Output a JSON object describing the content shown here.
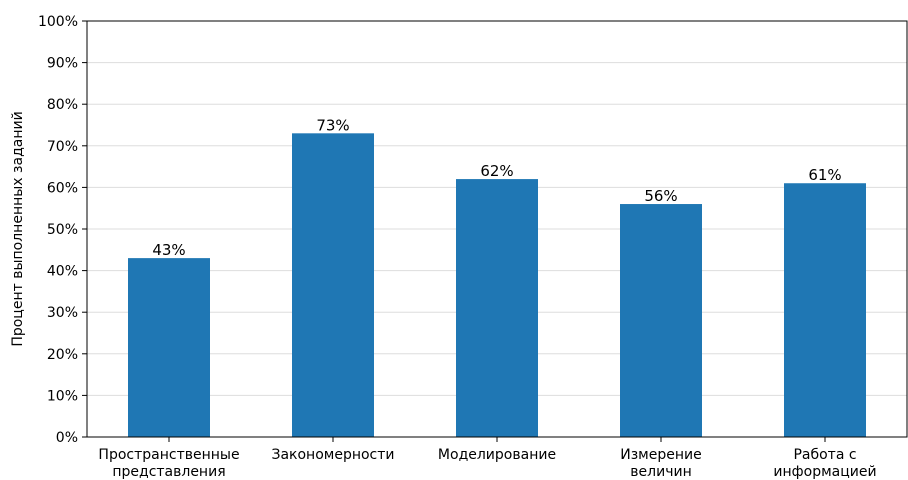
{
  "chart_data": {
    "type": "bar",
    "categories": [
      [
        "Пространственные",
        "представления"
      ],
      [
        "Закономерности"
      ],
      [
        "Моделирование"
      ],
      [
        "Измерение",
        "величин"
      ],
      [
        "Работа с",
        "информацией"
      ]
    ],
    "values": [
      43,
      73,
      62,
      56,
      61
    ],
    "data_labels": [
      "43%",
      "73%",
      "62%",
      "56%",
      "61%"
    ],
    "title": "",
    "xlabel": "",
    "ylabel": "Процент выполненных заданий",
    "ylim": [
      0,
      100
    ],
    "yticks": [
      0,
      10,
      20,
      30,
      40,
      50,
      60,
      70,
      80,
      90,
      100
    ],
    "ytick_labels": [
      "0%",
      "10%",
      "20%",
      "30%",
      "40%",
      "50%",
      "60%",
      "70%",
      "80%",
      "90%",
      "100%"
    ],
    "grid": "horizontal",
    "bar_color": "#1f77b4",
    "grid_color": "#dddddd"
  }
}
